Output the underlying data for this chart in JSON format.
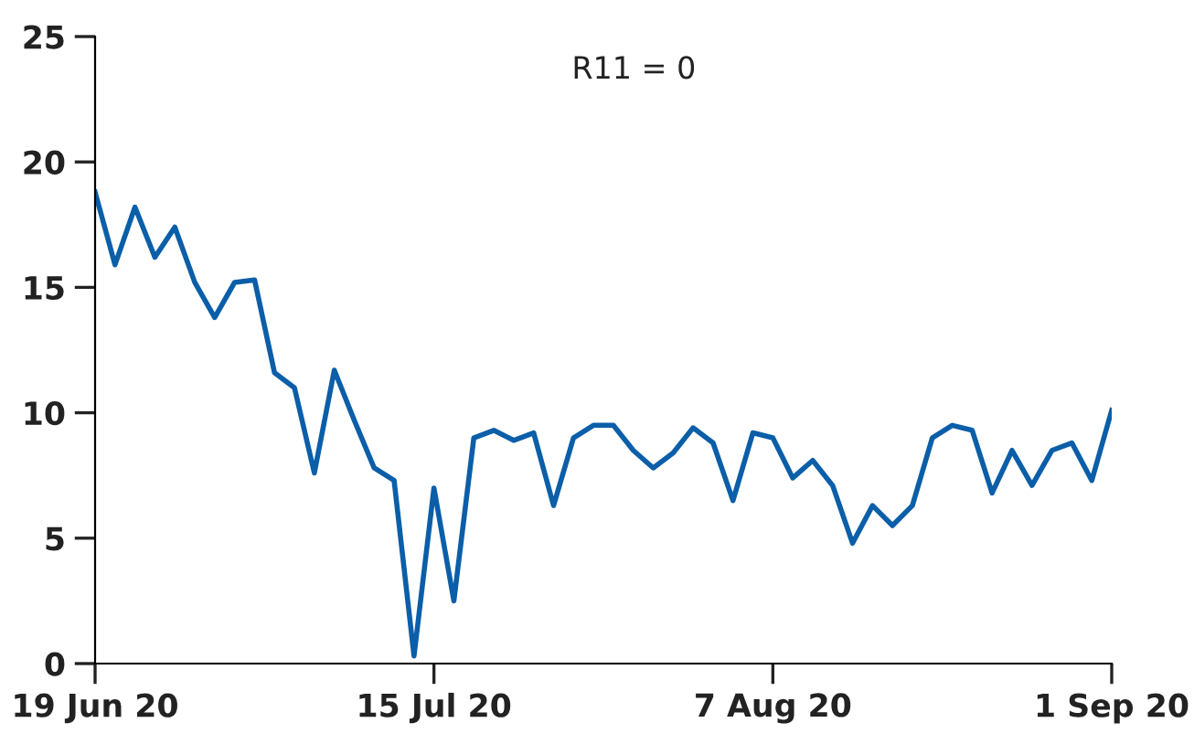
{
  "chart_data": {
    "type": "line",
    "title": "R11 = 0",
    "categories": [
      "19 Jun 20",
      null,
      null,
      null,
      null,
      null,
      null,
      null,
      null,
      null,
      null,
      null,
      null,
      null,
      null,
      null,
      null,
      "15 Jul 20",
      null,
      null,
      null,
      null,
      null,
      null,
      null,
      null,
      null,
      null,
      null,
      null,
      null,
      null,
      null,
      null,
      "7 Aug 20",
      null,
      null,
      null,
      null,
      null,
      null,
      null,
      null,
      null,
      null,
      null,
      null,
      null,
      null,
      null,
      null,
      "1 Sep 20"
    ],
    "series": [
      {
        "color": "#0b5ea8",
        "values": [
          18.8,
          15.9,
          18.2,
          16.2,
          17.4,
          15.2,
          13.8,
          15.2,
          15.3,
          11.6,
          11.0,
          7.6,
          11.7,
          9.7,
          7.8,
          7.3,
          0.3,
          7.0,
          2.5,
          9.0,
          9.3,
          8.9,
          9.2,
          6.3,
          9.0,
          9.5,
          9.5,
          8.5,
          7.8,
          8.4,
          9.4,
          8.8,
          6.5,
          9.2,
          9.0,
          7.4,
          8.1,
          7.1,
          4.8,
          6.3,
          5.5,
          6.3,
          9.0,
          9.5,
          9.3,
          6.8,
          8.5,
          7.1,
          8.5,
          8.8,
          7.3,
          10.1
        ]
      }
    ],
    "ylim": [
      0,
      25
    ],
    "yticks": [
      0,
      5,
      10,
      15,
      20,
      25
    ],
    "grid": false,
    "legend": false,
    "marker": "none",
    "line_style": "solid"
  }
}
